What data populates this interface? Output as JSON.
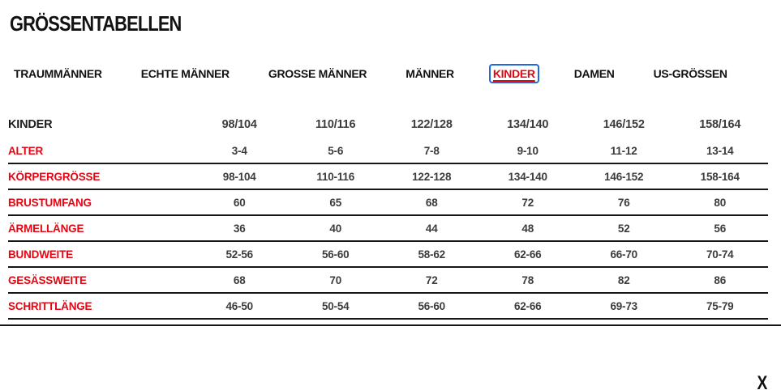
{
  "page": {
    "title": "GRÖSSENTABELLEN",
    "close_label": "X"
  },
  "colors": {
    "accent_red": "#e30613",
    "focus_blue": "#2069e0",
    "text_black": "#121212",
    "value_gray": "#3c3c3c"
  },
  "tabs": [
    {
      "label": "TRAUMMÄNNER",
      "active": false
    },
    {
      "label": "ECHTE MÄNNER",
      "active": false
    },
    {
      "label": "GROSSE MÄNNER",
      "active": false
    },
    {
      "label": "MÄNNER",
      "active": false
    },
    {
      "label": "KINDER",
      "active": true
    },
    {
      "label": "DAMEN",
      "active": false
    },
    {
      "label": "US-GRÖSSEN",
      "active": false
    }
  ],
  "table": {
    "header": [
      "KINDER",
      "98/104",
      "110/116",
      "122/128",
      "134/140",
      "146/152",
      "158/164"
    ],
    "rows": [
      {
        "label": "ALTER",
        "values": [
          "3-4",
          "5-6",
          "7-8",
          "9-10",
          "11-12",
          "13-14"
        ]
      },
      {
        "label": "KÖRPERGRÖSSE",
        "values": [
          "98-104",
          "110-116",
          "122-128",
          "134-140",
          "146-152",
          "158-164"
        ]
      },
      {
        "label": "BRUSTUMFANG",
        "values": [
          "60",
          "65",
          "68",
          "72",
          "76",
          "80"
        ]
      },
      {
        "label": "ÄRMELLÄNGE",
        "values": [
          "36",
          "40",
          "44",
          "48",
          "52",
          "56"
        ]
      },
      {
        "label": "BUNDWEITE",
        "values": [
          "52-56",
          "56-60",
          "58-62",
          "62-66",
          "66-70",
          "70-74"
        ]
      },
      {
        "label": "GESÄSSWEITE",
        "values": [
          "68",
          "70",
          "72",
          "78",
          "82",
          "86"
        ]
      },
      {
        "label": "SCHRITTLÄNGE",
        "values": [
          "46-50",
          "50-54",
          "56-60",
          "62-66",
          "69-73",
          "75-79"
        ]
      }
    ]
  }
}
